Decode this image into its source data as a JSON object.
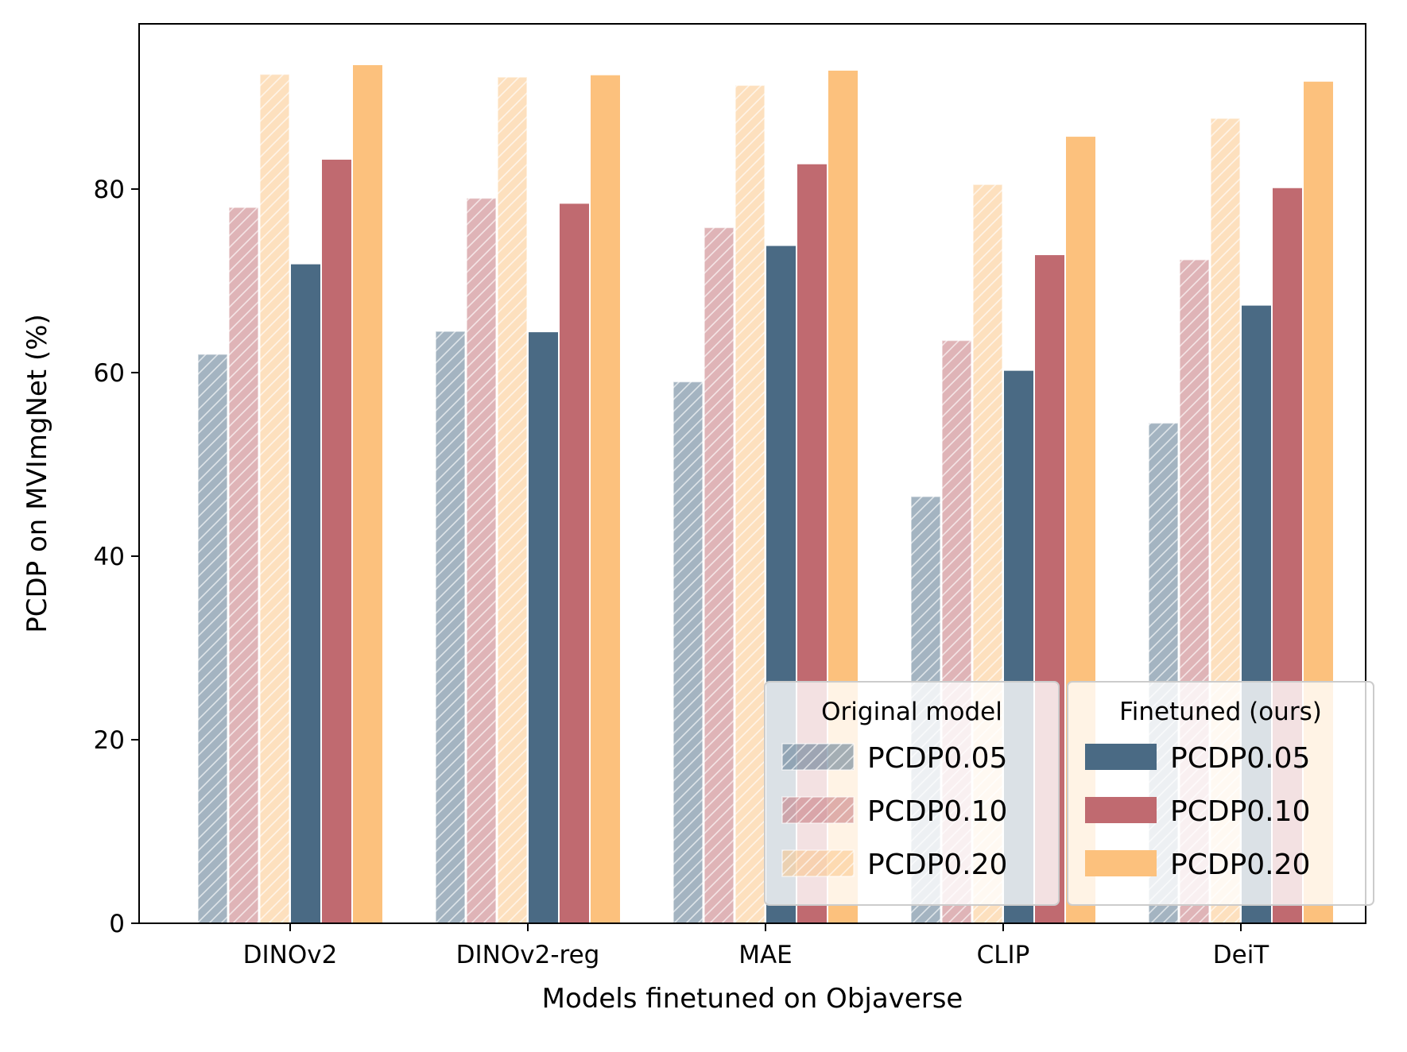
{
  "chart_data": {
    "type": "bar",
    "title": "",
    "xlabel": "Models finetuned on Objaverse",
    "ylabel": "PCDP on MVImgNet (%)",
    "ylim": [
      0,
      98
    ],
    "yticks": [
      0,
      20,
      40,
      60,
      80
    ],
    "categories": [
      "DINOv2",
      "DINOv2-reg",
      "MAE",
      "CLIP",
      "DeiT"
    ],
    "grid": false,
    "legend_position": "lower-right",
    "legend_groups": [
      {
        "title": "Original model",
        "group": "original"
      },
      {
        "title": "Finetuned (ours)",
        "group": "finetuned"
      }
    ],
    "series": [
      {
        "name": "PCDP0.05",
        "group": "original",
        "hatched": true,
        "color": "#4a6a84",
        "values": [
          62.0,
          64.5,
          59.0,
          46.5,
          54.5
        ]
      },
      {
        "name": "PCDP0.10",
        "group": "original",
        "hatched": true,
        "color": "#c06a70",
        "values": [
          78.0,
          79.0,
          75.8,
          63.5,
          72.3
        ]
      },
      {
        "name": "PCDP0.20",
        "group": "original",
        "hatched": true,
        "color": "#fcc17d",
        "values": [
          92.5,
          92.2,
          91.3,
          80.5,
          87.7
        ]
      },
      {
        "name": "PCDP0.05",
        "group": "finetuned",
        "hatched": false,
        "color": "#4a6a84",
        "values": [
          71.8,
          64.4,
          73.8,
          60.2,
          67.3
        ]
      },
      {
        "name": "PCDP0.10",
        "group": "finetuned",
        "hatched": false,
        "color": "#c06a70",
        "values": [
          83.2,
          78.4,
          82.7,
          72.8,
          80.1
        ]
      },
      {
        "name": "PCDP0.20",
        "group": "finetuned",
        "hatched": false,
        "color": "#fcc17d",
        "values": [
          93.5,
          92.4,
          92.9,
          85.7,
          91.7
        ]
      }
    ]
  }
}
